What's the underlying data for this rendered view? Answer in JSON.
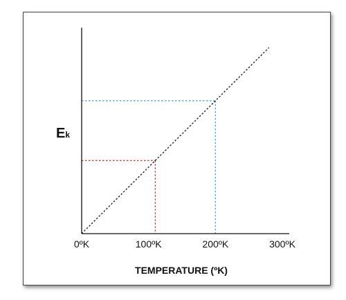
{
  "chart_data": {
    "type": "line",
    "title": "",
    "xlabel": "TEMPERATURE (ºK)",
    "ylabel": {
      "main": "E",
      "sub": "k"
    },
    "x_ticks": [
      {
        "value": 0,
        "label": "0ºK"
      },
      {
        "value": 100,
        "label": "100ºK"
      },
      {
        "value": 200,
        "label": "200ºK"
      },
      {
        "value": 300,
        "label": "300ºK"
      }
    ],
    "xlim": [
      0,
      300
    ],
    "ylim": [
      0,
      310
    ],
    "grid": false,
    "series": [
      {
        "style": "dotted",
        "color": "#111111",
        "x": [
          0,
          280
        ],
        "y": [
          0,
          280
        ]
      }
    ],
    "reference_lines": [
      {
        "x": 110,
        "y": 110,
        "color": "#cc2222"
      },
      {
        "x": 200,
        "y": 200,
        "color": "#3f9fc9"
      }
    ]
  }
}
